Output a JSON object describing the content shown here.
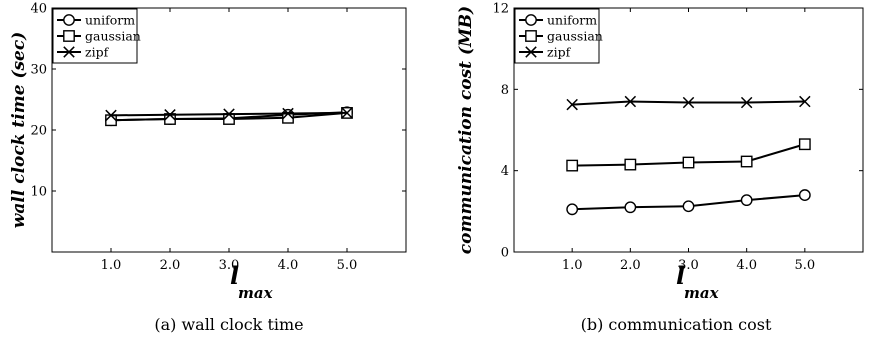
{
  "chart_data": [
    {
      "type": "line",
      "caption": "(a) wall clock time",
      "ylabel": "wall clock time (sec)",
      "xlabel_main": "l",
      "xlabel_sub": "max",
      "x": [
        1.0,
        2.0,
        3.0,
        4.0,
        5.0
      ],
      "xticks": [
        "1.0",
        "2.0",
        "3.0",
        "4.0",
        "5.0"
      ],
      "xlim": [
        0,
        6
      ],
      "ylim": [
        0,
        40
      ],
      "yticks": [
        "10",
        "20",
        "30",
        "40"
      ],
      "ytick_values": [
        10,
        20,
        30,
        40
      ],
      "legend": "top-left",
      "grid": false,
      "series": [
        {
          "name": "uniform",
          "marker": "circle",
          "values": [
            21.6,
            21.8,
            21.9,
            22.5,
            22.9
          ]
        },
        {
          "name": "gaussian",
          "marker": "square",
          "values": [
            21.6,
            21.8,
            21.8,
            22.0,
            22.8
          ]
        },
        {
          "name": "zipf",
          "marker": "x",
          "values": [
            22.4,
            22.5,
            22.6,
            22.7,
            22.8
          ]
        }
      ]
    },
    {
      "type": "line",
      "caption": "(b) communication cost",
      "ylabel": "communication cost (MB)",
      "xlabel_main": "l",
      "xlabel_sub": "max",
      "x": [
        1.0,
        2.0,
        3.0,
        4.0,
        5.0
      ],
      "xticks": [
        "1.0",
        "2.0",
        "3.0",
        "4.0",
        "5.0"
      ],
      "xlim": [
        0,
        6
      ],
      "ylim": [
        0,
        12
      ],
      "yticks": [
        "0",
        "4",
        "8",
        "12"
      ],
      "ytick_values": [
        0,
        4,
        8,
        12
      ],
      "legend": "top-left",
      "grid": false,
      "series": [
        {
          "name": "uniform",
          "marker": "circle",
          "values": [
            2.1,
            2.2,
            2.25,
            2.55,
            2.8
          ]
        },
        {
          "name": "gaussian",
          "marker": "square",
          "values": [
            4.25,
            4.3,
            4.4,
            4.45,
            5.3
          ]
        },
        {
          "name": "zipf",
          "marker": "x",
          "values": [
            7.25,
            7.4,
            7.35,
            7.35,
            7.4
          ]
        }
      ]
    }
  ]
}
